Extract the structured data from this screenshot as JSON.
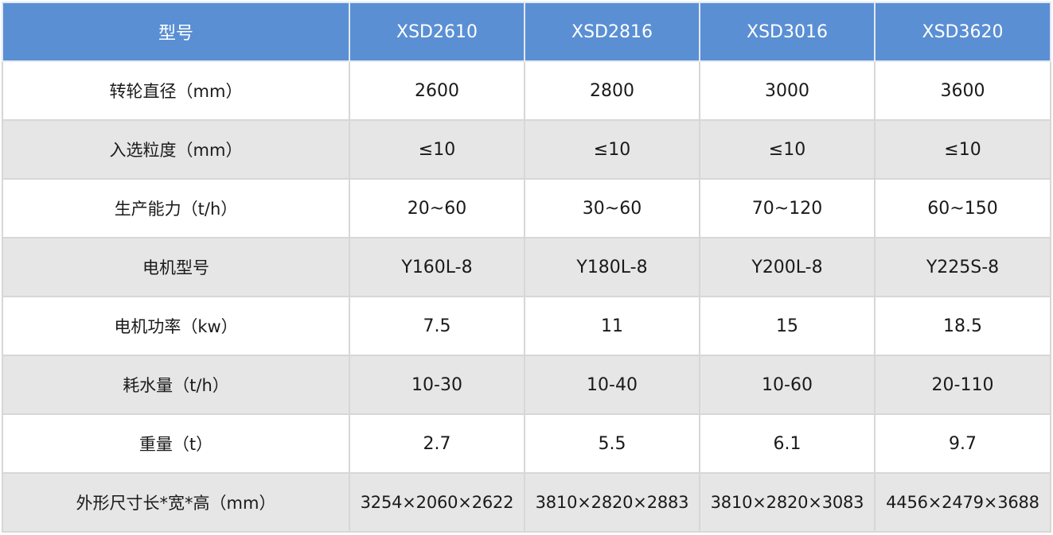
{
  "table": {
    "header": [
      "型号",
      "XSD2610",
      "XSD2816",
      "XSD3016",
      "XSD3620"
    ],
    "rows": [
      {
        "label": "转轮直径（mm）",
        "values": [
          "2600",
          "2800",
          "3000",
          "3600"
        ]
      },
      {
        "label": "入选粒度（mm）",
        "values": [
          "≤10",
          "≤10",
          "≤10",
          "≤10"
        ]
      },
      {
        "label": "生产能力（t/h）",
        "values": [
          "20~60",
          "30~60",
          "70~120",
          "60~150"
        ]
      },
      {
        "label": "电机型号",
        "values": [
          "Y160L-8",
          "Y180L-8",
          "Y200L-8",
          "Y225S-8"
        ]
      },
      {
        "label": "电机功率（kw）",
        "values": [
          "7.5",
          "11",
          "15",
          "18.5"
        ]
      },
      {
        "label": "耗水量（t/h）",
        "values": [
          "10-30",
          "10-40",
          "10-60",
          "20-110"
        ]
      },
      {
        "label": "重量（t）",
        "values": [
          "2.7",
          "5.5",
          "6.1",
          "9.7"
        ]
      },
      {
        "label": "外形尺寸长*宽*高（mm）",
        "values": [
          "3254×2060×2622",
          "3810×2820×2883",
          "3810×2820×3083",
          "4456×2479×3688"
        ]
      }
    ]
  },
  "colors": {
    "header_bg": "#5a8fd4",
    "header_text": "#ffffff",
    "row_alt_bg": "#e6e6e6",
    "border": "#d7d7d7"
  }
}
